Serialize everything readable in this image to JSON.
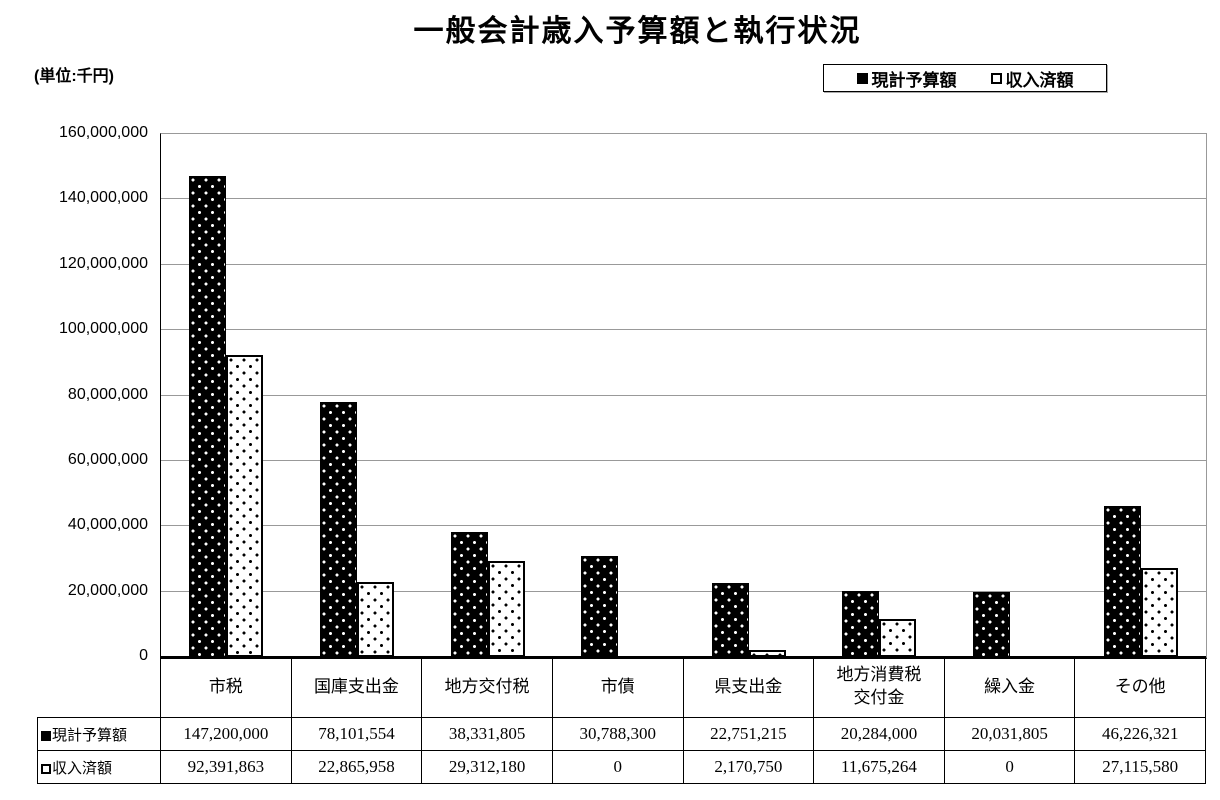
{
  "title": "一般会計歳入予算額と執行状況",
  "unit_label": "(単位:千円)",
  "legend": {
    "series1_label": "現計予算額",
    "series2_label": "収入済額",
    "series1_marker": "filled-square",
    "series2_marker": "open-square"
  },
  "colors": {
    "bar_budget": "#000000",
    "bar_received_dots": "#000000",
    "gridline": "#999999",
    "axis": "#000000"
  },
  "chart_data": {
    "type": "bar",
    "title": "一般会計歳入予算額と執行状況",
    "unit": "千円",
    "categories": [
      "市税",
      "国庫支出金",
      "地方交付税",
      "市債",
      "県支出金",
      "地方消費税交付金",
      "繰入金",
      "その他"
    ],
    "series": [
      {
        "name": "現計予算額",
        "values": [
          147200000,
          78101554,
          38331805,
          30788300,
          22751215,
          20284000,
          20031805,
          46226321
        ]
      },
      {
        "name": "収入済額",
        "values": [
          92391863,
          22865958,
          29312180,
          0,
          2170750,
          11675264,
          0,
          27115580
        ]
      }
    ],
    "ylim": [
      0,
      160000000
    ],
    "ytick_interval": 20000000,
    "ytick_labels": [
      "0",
      "20,000,000",
      "40,000,000",
      "60,000,000",
      "80,000,000",
      "100,000,000",
      "120,000,000",
      "140,000,000",
      "160,000,000"
    ],
    "grid": true,
    "legend_position": "top-right"
  },
  "table": {
    "headers": [
      "市税",
      "国庫支出金",
      "地方交付税",
      "市債",
      "県支出金",
      "地方消費税\n交付金",
      "繰入金",
      "その他"
    ],
    "row_labels": [
      "現計予算額",
      "収入済額"
    ],
    "rows": [
      [
        "147,200,000",
        "78,101,554",
        "38,331,805",
        "30,788,300",
        "22,751,215",
        "20,284,000",
        "20,031,805",
        "46,226,321"
      ],
      [
        "92,391,863",
        "22,865,958",
        "29,312,180",
        "0",
        "2,170,750",
        "11,675,264",
        "0",
        "27,115,580"
      ]
    ]
  }
}
